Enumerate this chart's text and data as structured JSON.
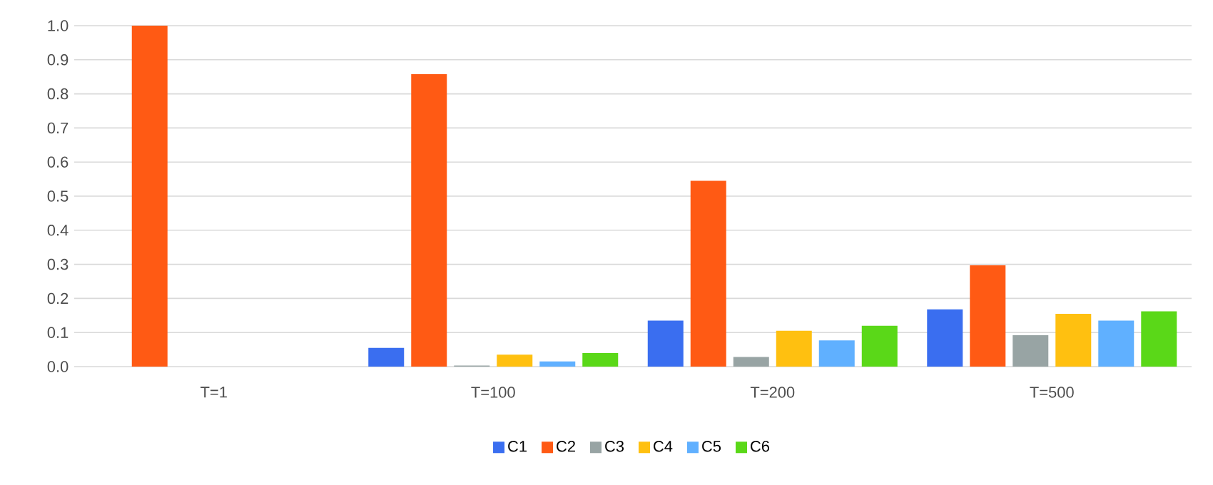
{
  "chart_data": {
    "type": "bar",
    "categories": [
      "T=1",
      "T=100",
      "T=200",
      "T=500"
    ],
    "series": [
      {
        "name": "C1",
        "color": "#3a6ef0",
        "values": [
          0,
          0.055,
          0.135,
          0.168
        ]
      },
      {
        "name": "C2",
        "color": "#ff5a14",
        "values": [
          1.0,
          0.858,
          0.545,
          0.297
        ]
      },
      {
        "name": "C3",
        "color": "#98a4a4",
        "values": [
          0,
          0.003,
          0.028,
          0.092
        ]
      },
      {
        "name": "C4",
        "color": "#ffc010",
        "values": [
          0,
          0.035,
          0.105,
          0.155
        ]
      },
      {
        "name": "C5",
        "color": "#60b0ff",
        "values": [
          0,
          0.015,
          0.077,
          0.135
        ]
      },
      {
        "name": "C6",
        "color": "#5ad818",
        "values": [
          0,
          0.04,
          0.12,
          0.162
        ]
      }
    ],
    "ylim": [
      0,
      1.0
    ],
    "yticks": [
      {
        "value": 0,
        "label": "0.0"
      },
      0.1,
      0.2,
      0.3,
      0.4,
      0.5,
      0.6,
      0.7,
      0.8,
      0.9,
      {
        "value": 1.0,
        "label": "1.0"
      }
    ],
    "grid": "y",
    "legend": "bottom"
  }
}
